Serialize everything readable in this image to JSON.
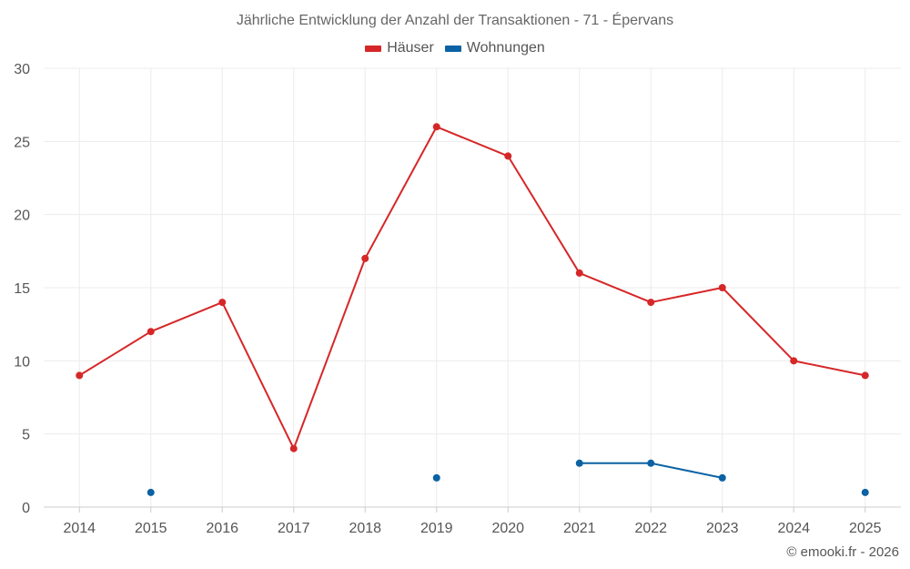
{
  "chart_data": {
    "type": "line",
    "title": "Jährliche Entwicklung der Anzahl der Transaktionen - 71 - Épervans",
    "xlabel": "",
    "ylabel": "",
    "ylim": [
      0,
      30
    ],
    "yticks": [
      0,
      5,
      10,
      15,
      20,
      25,
      30
    ],
    "grid": true,
    "legend_position": "top-center",
    "categories": [
      "2014",
      "2015",
      "2016",
      "2017",
      "2018",
      "2019",
      "2020",
      "2021",
      "2022",
      "2023",
      "2024",
      "2025"
    ],
    "series": [
      {
        "name": "Häuser",
        "color": "#d62728",
        "values": [
          9,
          12,
          14,
          4,
          17,
          26,
          24,
          16,
          14,
          15,
          10,
          9
        ]
      },
      {
        "name": "Wohnungen",
        "color": "#0b62a4",
        "values": [
          null,
          1,
          null,
          null,
          null,
          2,
          null,
          3,
          3,
          2,
          null,
          1
        ]
      }
    ]
  },
  "credit": "© emooki.fr - 2026"
}
